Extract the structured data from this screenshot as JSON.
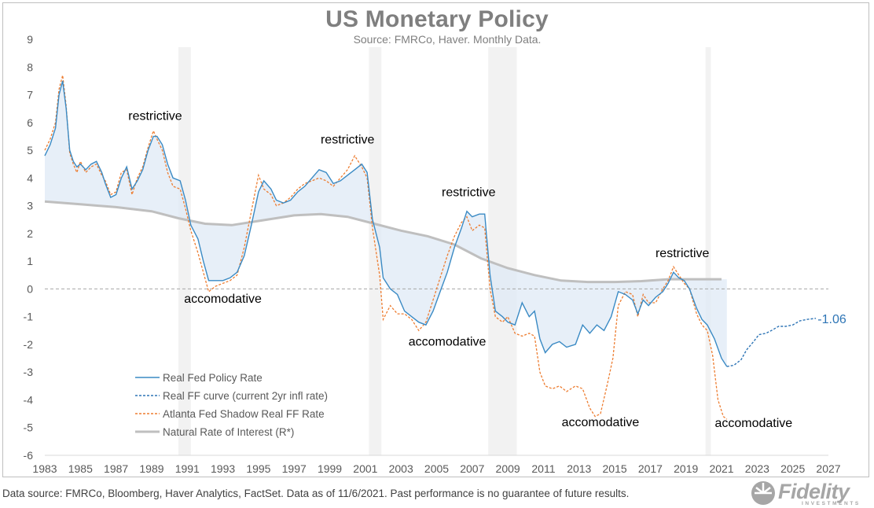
{
  "title": "US Monetary Policy",
  "subtitle": "Source: FMRCo, Haver.  Monthly Data.",
  "footnote": "Data source: FMRCo, Bloomberg, Haver Analytics, FactSet. Data as of 11/6/2021. Past performance is no guarantee of future results.",
  "logo": {
    "name": "Fidelity",
    "sub": "INVESTMENTS"
  },
  "colors": {
    "policy": "#3a8ac4",
    "curve": "#2e75b6",
    "shadow": "#ed7d31",
    "natural": "#bfbfbf",
    "fill": "#dfe9f6",
    "recession": "#f2f2f2",
    "endlabel": "#2e75b6"
  },
  "chart_data": {
    "type": "line",
    "xlim": [
      1983,
      2027
    ],
    "ylim": [
      -6,
      9
    ],
    "xticks": [
      "1983",
      "1985",
      "1987",
      "1989",
      "1991",
      "1993",
      "1995",
      "1997",
      "1999",
      "2001",
      "2003",
      "2005",
      "2007",
      "2009",
      "2011",
      "2013",
      "2015",
      "2017",
      "2019",
      "2021",
      "2023",
      "2025",
      "2027"
    ],
    "yticks": [
      "9",
      "8",
      "7",
      "6",
      "5",
      "4",
      "3",
      "2",
      "1",
      "0",
      "-1",
      "-2",
      "-3",
      "-4",
      "-5",
      "-6"
    ],
    "recessions": [
      [
        1990.5,
        1991.2
      ],
      [
        2001.2,
        2001.9
      ],
      [
        2007.9,
        2009.5
      ],
      [
        2020.1,
        2020.4
      ]
    ],
    "zero_line": true,
    "series": [
      {
        "name": "Real Fed Policy Rate",
        "style": "solid",
        "points": [
          [
            1983.0,
            4.8
          ],
          [
            1983.3,
            5.2
          ],
          [
            1983.6,
            5.8
          ],
          [
            1983.8,
            7.0
          ],
          [
            1984.0,
            7.5
          ],
          [
            1984.2,
            6.5
          ],
          [
            1984.4,
            5.0
          ],
          [
            1984.6,
            4.6
          ],
          [
            1984.8,
            4.4
          ],
          [
            1985.0,
            4.5
          ],
          [
            1985.3,
            4.3
          ],
          [
            1985.6,
            4.5
          ],
          [
            1985.9,
            4.6
          ],
          [
            1986.2,
            4.2
          ],
          [
            1986.4,
            3.8
          ],
          [
            1986.7,
            3.3
          ],
          [
            1987.0,
            3.4
          ],
          [
            1987.3,
            4.0
          ],
          [
            1987.6,
            4.4
          ],
          [
            1987.9,
            3.6
          ],
          [
            1988.2,
            3.9
          ],
          [
            1988.5,
            4.3
          ],
          [
            1988.8,
            5.0
          ],
          [
            1989.1,
            5.5
          ],
          [
            1989.3,
            5.5
          ],
          [
            1989.6,
            5.2
          ],
          [
            1989.9,
            4.5
          ],
          [
            1990.2,
            4.0
          ],
          [
            1990.6,
            3.9
          ],
          [
            1990.9,
            3.2
          ],
          [
            1991.2,
            2.3
          ],
          [
            1991.6,
            1.8
          ],
          [
            1991.9,
            1.0
          ],
          [
            1992.2,
            0.3
          ],
          [
            1992.6,
            0.3
          ],
          [
            1993.0,
            0.3
          ],
          [
            1993.4,
            0.4
          ],
          [
            1993.8,
            0.6
          ],
          [
            1994.2,
            1.2
          ],
          [
            1994.6,
            2.3
          ],
          [
            1995.0,
            3.5
          ],
          [
            1995.3,
            3.9
          ],
          [
            1995.7,
            3.6
          ],
          [
            1996.0,
            3.2
          ],
          [
            1996.4,
            3.1
          ],
          [
            1996.8,
            3.2
          ],
          [
            1997.2,
            3.5
          ],
          [
            1997.6,
            3.7
          ],
          [
            1998.0,
            4.0
          ],
          [
            1998.4,
            4.3
          ],
          [
            1998.8,
            4.2
          ],
          [
            1999.2,
            3.8
          ],
          [
            1999.6,
            3.9
          ],
          [
            2000.0,
            4.1
          ],
          [
            2000.4,
            4.3
          ],
          [
            2000.8,
            4.5
          ],
          [
            2001.1,
            4.2
          ],
          [
            2001.4,
            2.5
          ],
          [
            2001.8,
            1.5
          ],
          [
            2002.0,
            0.4
          ],
          [
            2002.4,
            0.0
          ],
          [
            2002.8,
            -0.2
          ],
          [
            2003.2,
            -0.8
          ],
          [
            2003.6,
            -1.0
          ],
          [
            2004.0,
            -1.2
          ],
          [
            2004.4,
            -1.3
          ],
          [
            2004.8,
            -0.8
          ],
          [
            2005.2,
            -0.1
          ],
          [
            2005.6,
            0.6
          ],
          [
            2006.0,
            1.5
          ],
          [
            2006.4,
            2.2
          ],
          [
            2006.7,
            2.8
          ],
          [
            2007.0,
            2.6
          ],
          [
            2007.4,
            2.7
          ],
          [
            2007.7,
            2.7
          ],
          [
            2008.0,
            0.5
          ],
          [
            2008.3,
            -0.8
          ],
          [
            2008.7,
            -1.0
          ],
          [
            2009.0,
            -1.2
          ],
          [
            2009.4,
            -1.3
          ],
          [
            2009.8,
            -0.5
          ],
          [
            2010.2,
            -1.0
          ],
          [
            2010.5,
            -0.8
          ],
          [
            2010.8,
            -1.8
          ],
          [
            2011.1,
            -2.3
          ],
          [
            2011.5,
            -2.0
          ],
          [
            2011.9,
            -1.9
          ],
          [
            2012.3,
            -2.1
          ],
          [
            2012.8,
            -2.0
          ],
          [
            2013.2,
            -1.3
          ],
          [
            2013.6,
            -1.6
          ],
          [
            2014.0,
            -1.3
          ],
          [
            2014.4,
            -1.5
          ],
          [
            2014.8,
            -1.0
          ],
          [
            2015.2,
            -0.1
          ],
          [
            2015.6,
            -0.2
          ],
          [
            2016.0,
            -0.4
          ],
          [
            2016.3,
            -0.9
          ],
          [
            2016.6,
            -0.4
          ],
          [
            2016.9,
            -0.6
          ],
          [
            2017.3,
            -0.3
          ],
          [
            2017.7,
            -0.1
          ],
          [
            2018.0,
            0.2
          ],
          [
            2018.3,
            0.6
          ],
          [
            2018.6,
            0.4
          ],
          [
            2018.9,
            0.3
          ],
          [
            2019.2,
            0.0
          ],
          [
            2019.6,
            -0.7
          ],
          [
            2019.9,
            -1.1
          ],
          [
            2020.2,
            -1.3
          ],
          [
            2020.6,
            -1.8
          ],
          [
            2021.0,
            -2.5
          ],
          [
            2021.3,
            -2.8
          ]
        ]
      },
      {
        "name": "Real FF curve (current 2yr infl rate)",
        "style": "dashed",
        "points": [
          [
            2021.3,
            -2.8
          ],
          [
            2021.7,
            -2.75
          ],
          [
            2022.1,
            -2.55
          ],
          [
            2022.4,
            -2.2
          ],
          [
            2022.8,
            -1.9
          ],
          [
            2023.1,
            -1.65
          ],
          [
            2023.5,
            -1.6
          ],
          [
            2023.8,
            -1.5
          ],
          [
            2024.2,
            -1.35
          ],
          [
            2024.6,
            -1.35
          ],
          [
            2025.0,
            -1.3
          ],
          [
            2025.4,
            -1.15
          ],
          [
            2025.8,
            -1.1
          ],
          [
            2026.3,
            -1.06
          ]
        ]
      },
      {
        "name": "Atlanta Fed Shadow Real FF Rate",
        "style": "dotted",
        "points": [
          [
            1983.0,
            5.0
          ],
          [
            1983.3,
            5.4
          ],
          [
            1983.6,
            6.0
          ],
          [
            1983.8,
            7.2
          ],
          [
            1984.0,
            7.7
          ],
          [
            1984.2,
            6.6
          ],
          [
            1984.4,
            4.9
          ],
          [
            1984.6,
            4.5
          ],
          [
            1984.8,
            4.2
          ],
          [
            1985.0,
            4.6
          ],
          [
            1985.3,
            4.2
          ],
          [
            1985.6,
            4.4
          ],
          [
            1985.9,
            4.5
          ],
          [
            1986.2,
            4.1
          ],
          [
            1986.4,
            3.9
          ],
          [
            1986.7,
            3.4
          ],
          [
            1987.0,
            3.5
          ],
          [
            1987.3,
            4.2
          ],
          [
            1987.6,
            4.3
          ],
          [
            1987.9,
            3.4
          ],
          [
            1988.2,
            4.0
          ],
          [
            1988.5,
            4.4
          ],
          [
            1988.8,
            5.1
          ],
          [
            1989.1,
            5.7
          ],
          [
            1989.3,
            5.4
          ],
          [
            1989.6,
            5.0
          ],
          [
            1989.9,
            4.2
          ],
          [
            1990.2,
            3.7
          ],
          [
            1990.6,
            3.6
          ],
          [
            1990.9,
            2.9
          ],
          [
            1991.2,
            2.1
          ],
          [
            1991.6,
            1.3
          ],
          [
            1991.9,
            0.6
          ],
          [
            1992.2,
            -0.1
          ],
          [
            1992.6,
            0.1
          ],
          [
            1993.0,
            0.2
          ],
          [
            1993.4,
            0.3
          ],
          [
            1993.8,
            0.5
          ],
          [
            1994.2,
            1.5
          ],
          [
            1994.6,
            2.8
          ],
          [
            1995.0,
            4.1
          ],
          [
            1995.3,
            3.6
          ],
          [
            1995.7,
            3.4
          ],
          [
            1996.0,
            3.0
          ],
          [
            1996.4,
            3.1
          ],
          [
            1996.8,
            3.3
          ],
          [
            1997.2,
            3.6
          ],
          [
            1997.6,
            3.8
          ],
          [
            1998.0,
            3.9
          ],
          [
            1998.4,
            4.0
          ],
          [
            1998.8,
            3.9
          ],
          [
            1999.2,
            3.7
          ],
          [
            1999.6,
            4.0
          ],
          [
            2000.0,
            4.3
          ],
          [
            2000.4,
            4.8
          ],
          [
            2000.8,
            4.4
          ],
          [
            2001.1,
            4.0
          ],
          [
            2001.4,
            2.2
          ],
          [
            2001.8,
            0.5
          ],
          [
            2002.0,
            -1.1
          ],
          [
            2002.4,
            -0.6
          ],
          [
            2002.8,
            -0.9
          ],
          [
            2003.2,
            -0.9
          ],
          [
            2003.6,
            -1.1
          ],
          [
            2004.0,
            -1.5
          ],
          [
            2004.4,
            -1.2
          ],
          [
            2004.8,
            -0.4
          ],
          [
            2005.2,
            0.4
          ],
          [
            2005.6,
            1.2
          ],
          [
            2006.0,
            1.9
          ],
          [
            2006.4,
            2.4
          ],
          [
            2006.7,
            2.6
          ],
          [
            2007.0,
            2.1
          ],
          [
            2007.4,
            2.3
          ],
          [
            2007.7,
            2.2
          ],
          [
            2008.0,
            0.0
          ],
          [
            2008.3,
            -1.0
          ],
          [
            2008.7,
            -1.2
          ],
          [
            2009.0,
            -1.0
          ],
          [
            2009.4,
            -1.6
          ],
          [
            2009.8,
            -1.7
          ],
          [
            2010.2,
            -1.6
          ],
          [
            2010.5,
            -1.7
          ],
          [
            2010.8,
            -3.0
          ],
          [
            2011.1,
            -3.5
          ],
          [
            2011.5,
            -3.6
          ],
          [
            2011.9,
            -3.5
          ],
          [
            2012.3,
            -3.7
          ],
          [
            2012.8,
            -3.5
          ],
          [
            2013.2,
            -3.6
          ],
          [
            2013.6,
            -4.3
          ],
          [
            2013.9,
            -4.6
          ],
          [
            2014.2,
            -4.5
          ],
          [
            2014.6,
            -3.4
          ],
          [
            2014.9,
            -2.5
          ],
          [
            2015.2,
            -0.6
          ],
          [
            2015.6,
            -0.1
          ],
          [
            2016.0,
            -0.2
          ],
          [
            2016.3,
            -1.0
          ],
          [
            2016.6,
            -0.2
          ],
          [
            2016.9,
            -0.5
          ],
          [
            2017.3,
            -0.5
          ],
          [
            2017.7,
            0.0
          ],
          [
            2018.0,
            0.3
          ],
          [
            2018.3,
            0.8
          ],
          [
            2018.6,
            0.5
          ],
          [
            2018.9,
            0.2
          ],
          [
            2019.2,
            0.0
          ],
          [
            2019.6,
            -0.9
          ],
          [
            2019.9,
            -1.3
          ],
          [
            2020.2,
            -1.5
          ],
          [
            2020.5,
            -2.4
          ],
          [
            2020.8,
            -4.0
          ],
          [
            2021.1,
            -4.6
          ],
          [
            2021.3,
            -4.7
          ]
        ]
      },
      {
        "name": "Natural Rate of Interest (R*)",
        "style": "solid-thick",
        "points": [
          [
            1983.0,
            3.15
          ],
          [
            1985.0,
            3.05
          ],
          [
            1987.0,
            2.95
          ],
          [
            1989.0,
            2.8
          ],
          [
            1990.5,
            2.55
          ],
          [
            1992.0,
            2.35
          ],
          [
            1993.5,
            2.3
          ],
          [
            1995.0,
            2.45
          ],
          [
            1997.0,
            2.65
          ],
          [
            1998.5,
            2.7
          ],
          [
            2000.0,
            2.6
          ],
          [
            2001.5,
            2.35
          ],
          [
            2003.0,
            2.1
          ],
          [
            2004.5,
            1.9
          ],
          [
            2006.0,
            1.6
          ],
          [
            2007.5,
            1.1
          ],
          [
            2009.0,
            0.75
          ],
          [
            2010.5,
            0.5
          ],
          [
            2012.0,
            0.3
          ],
          [
            2013.5,
            0.25
          ],
          [
            2015.0,
            0.25
          ],
          [
            2016.5,
            0.28
          ],
          [
            2018.0,
            0.35
          ],
          [
            2019.5,
            0.35
          ],
          [
            2021.0,
            0.35
          ]
        ]
      }
    ],
    "annotations": [
      {
        "text": "restrictive",
        "x": 1989.2,
        "y": 6.1
      },
      {
        "text": "accomodative",
        "x": 1993.0,
        "y": -0.5
      },
      {
        "text": "restrictive",
        "x": 2000.0,
        "y": 5.25
      },
      {
        "text": "accomodative",
        "x": 2005.6,
        "y": -2.05
      },
      {
        "text": "restrictive",
        "x": 2006.8,
        "y": 3.35
      },
      {
        "text": "accomodative",
        "x": 2014.2,
        "y": -4.95
      },
      {
        "text": "restrictive",
        "x": 2018.8,
        "y": 1.15
      },
      {
        "text": "accomodative",
        "x": 2022.8,
        "y": -4.98
      }
    ],
    "end_label": {
      "text": "-1.06",
      "x": 2027.2,
      "y": -1.06
    }
  }
}
